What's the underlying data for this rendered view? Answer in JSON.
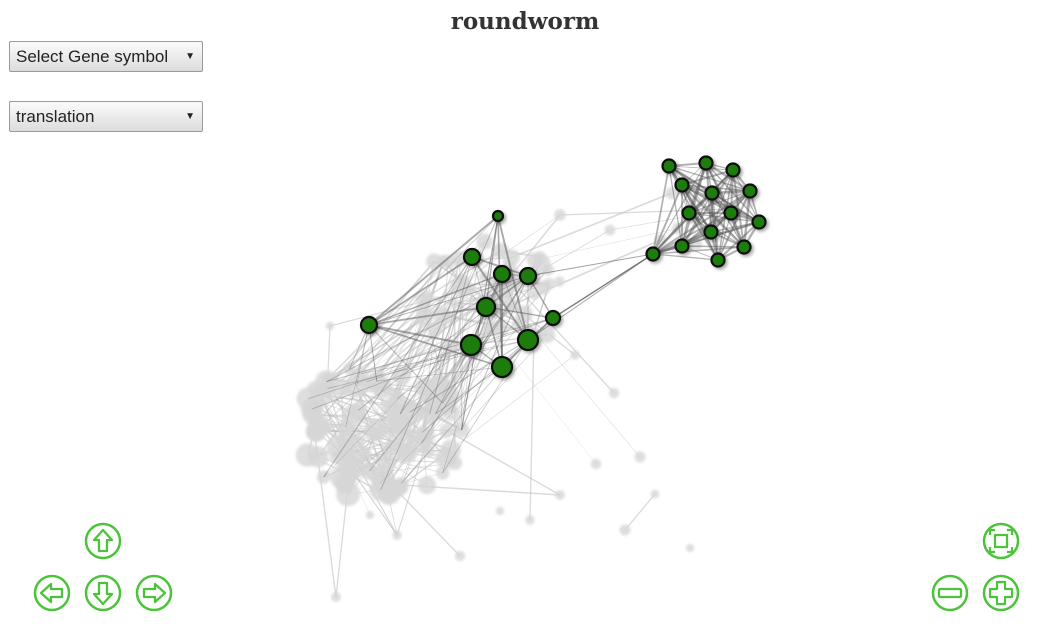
{
  "page": {
    "title": "roundworm"
  },
  "controls": {
    "gene_select": {
      "label": "Select Gene symbol"
    },
    "function_select": {
      "label": "translation"
    }
  },
  "colors": {
    "highlight_node": "#1e7d11",
    "node_outline": "#0d0d0d",
    "background_node": "#d6d6d6",
    "nav_green": "#4cc33b"
  },
  "navigation": {
    "icons": [
      "arrow-up-icon",
      "arrow-left-icon",
      "arrow-down-icon",
      "arrow-right-icon",
      "zoom-out-icon",
      "zoom-in-icon",
      "fit-view-icon"
    ]
  }
}
